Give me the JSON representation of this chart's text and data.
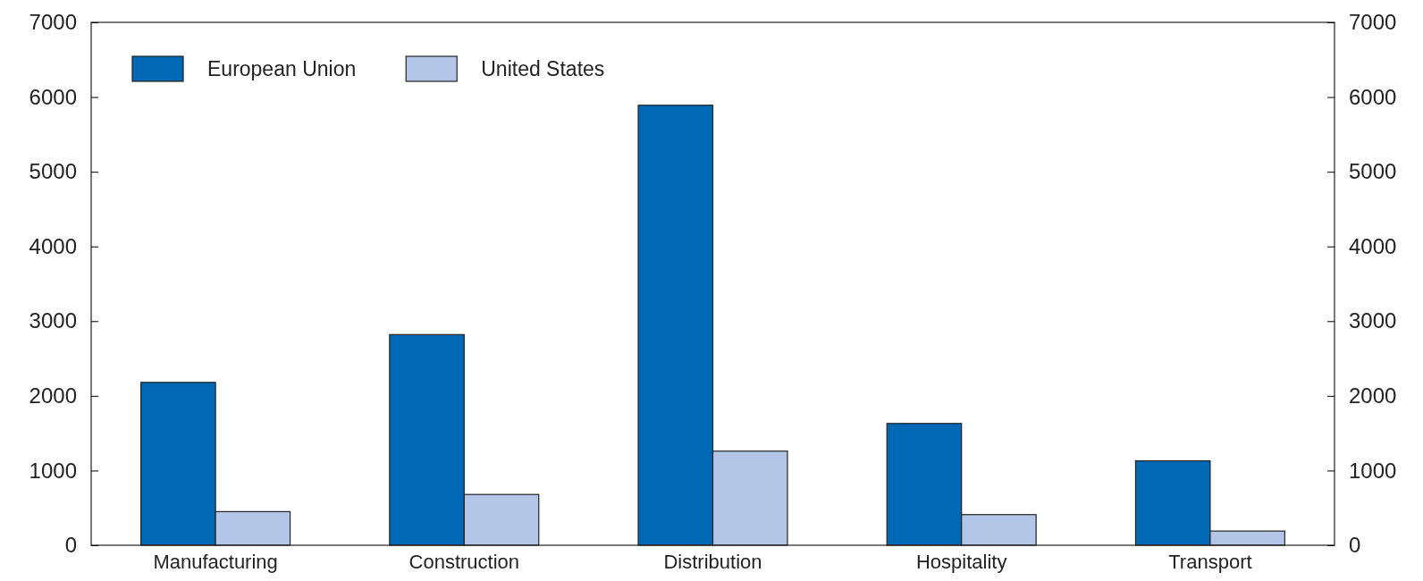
{
  "chart_data": {
    "type": "bar",
    "categories": [
      "Manufacturing",
      "Construction",
      "Distribution",
      "Hospitality",
      "Transport"
    ],
    "series": [
      {
        "name": "European Union",
        "color": "#0068b4",
        "values": [
          2180,
          2820,
          5890,
          1630,
          1130
        ]
      },
      {
        "name": "United States",
        "color": "#b4c6e7",
        "values": [
          450,
          680,
          1260,
          410,
          190
        ]
      }
    ],
    "ylim": [
      0,
      7000
    ],
    "yticks": [
      0,
      1000,
      2000,
      3000,
      4000,
      5000,
      6000,
      7000
    ],
    "y2lim": [
      0,
      7000
    ],
    "y2ticks": [
      0,
      1000,
      2000,
      3000,
      4000,
      5000,
      6000,
      7000
    ],
    "grid": false,
    "legend": "top left"
  }
}
